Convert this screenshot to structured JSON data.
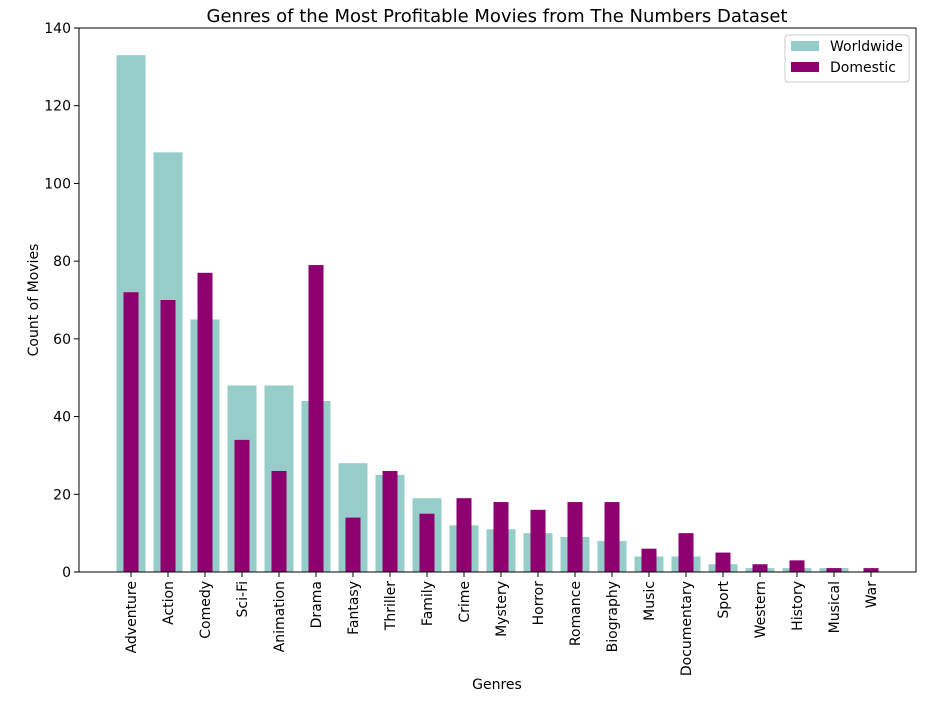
{
  "chart_data": {
    "type": "bar",
    "title": "Genres of the Most Profitable Movies from The Numbers Dataset",
    "xlabel": "Genres",
    "ylabel": "Count of Movies",
    "ylim": [
      0,
      140
    ],
    "yticks": [
      0,
      20,
      40,
      60,
      80,
      100,
      120,
      140
    ],
    "grid": false,
    "legend_position": "top-right",
    "categories": [
      "Adventure",
      "Action",
      "Comedy",
      "Sci-Fi",
      "Animation",
      "Drama",
      "Fantasy",
      "Thriller",
      "Family",
      "Crime",
      "Mystery",
      "Horror",
      "Romance",
      "Biography",
      "Music",
      "Documentary",
      "Sport",
      "Western",
      "History",
      "Musical",
      "War"
    ],
    "series": [
      {
        "name": "Worldwide",
        "color": "#96cdc9",
        "values": [
          133,
          108,
          65,
          48,
          48,
          44,
          28,
          25,
          19,
          12,
          11,
          10,
          9,
          8,
          4,
          4,
          2,
          1,
          1,
          1,
          0
        ]
      },
      {
        "name": "Domestic",
        "color": "#8e0070",
        "values": [
          72,
          70,
          77,
          34,
          26,
          79,
          14,
          26,
          15,
          19,
          18,
          16,
          18,
          18,
          6,
          10,
          5,
          2,
          3,
          1,
          1
        ]
      }
    ]
  }
}
